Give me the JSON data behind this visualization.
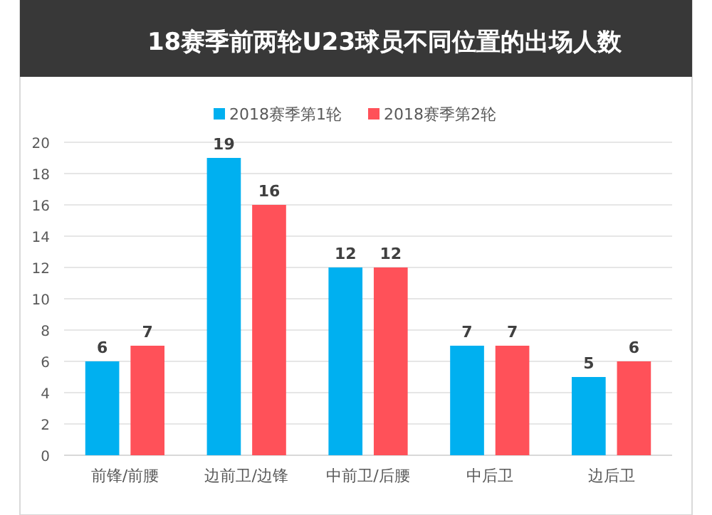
{
  "chart_data": {
    "type": "bar",
    "title": "18赛季前两轮U23球员不同位置的出场人数",
    "categories": [
      "前锋/前腰",
      "边前卫/边锋",
      "中前卫/后腰",
      "中后卫",
      "边后卫"
    ],
    "series": [
      {
        "name": "2018赛季第1轮",
        "color": "#00b0f0",
        "values": [
          6,
          19,
          12,
          7,
          5
        ]
      },
      {
        "name": "2018赛季第2轮",
        "color": "#ff5159",
        "values": [
          7,
          16,
          12,
          7,
          6
        ]
      }
    ],
    "ylim": [
      0,
      20
    ],
    "yticks": [
      0,
      2,
      4,
      6,
      8,
      10,
      12,
      14,
      16,
      18,
      20
    ],
    "grid": "y",
    "legend": "top",
    "data_labels": true
  }
}
